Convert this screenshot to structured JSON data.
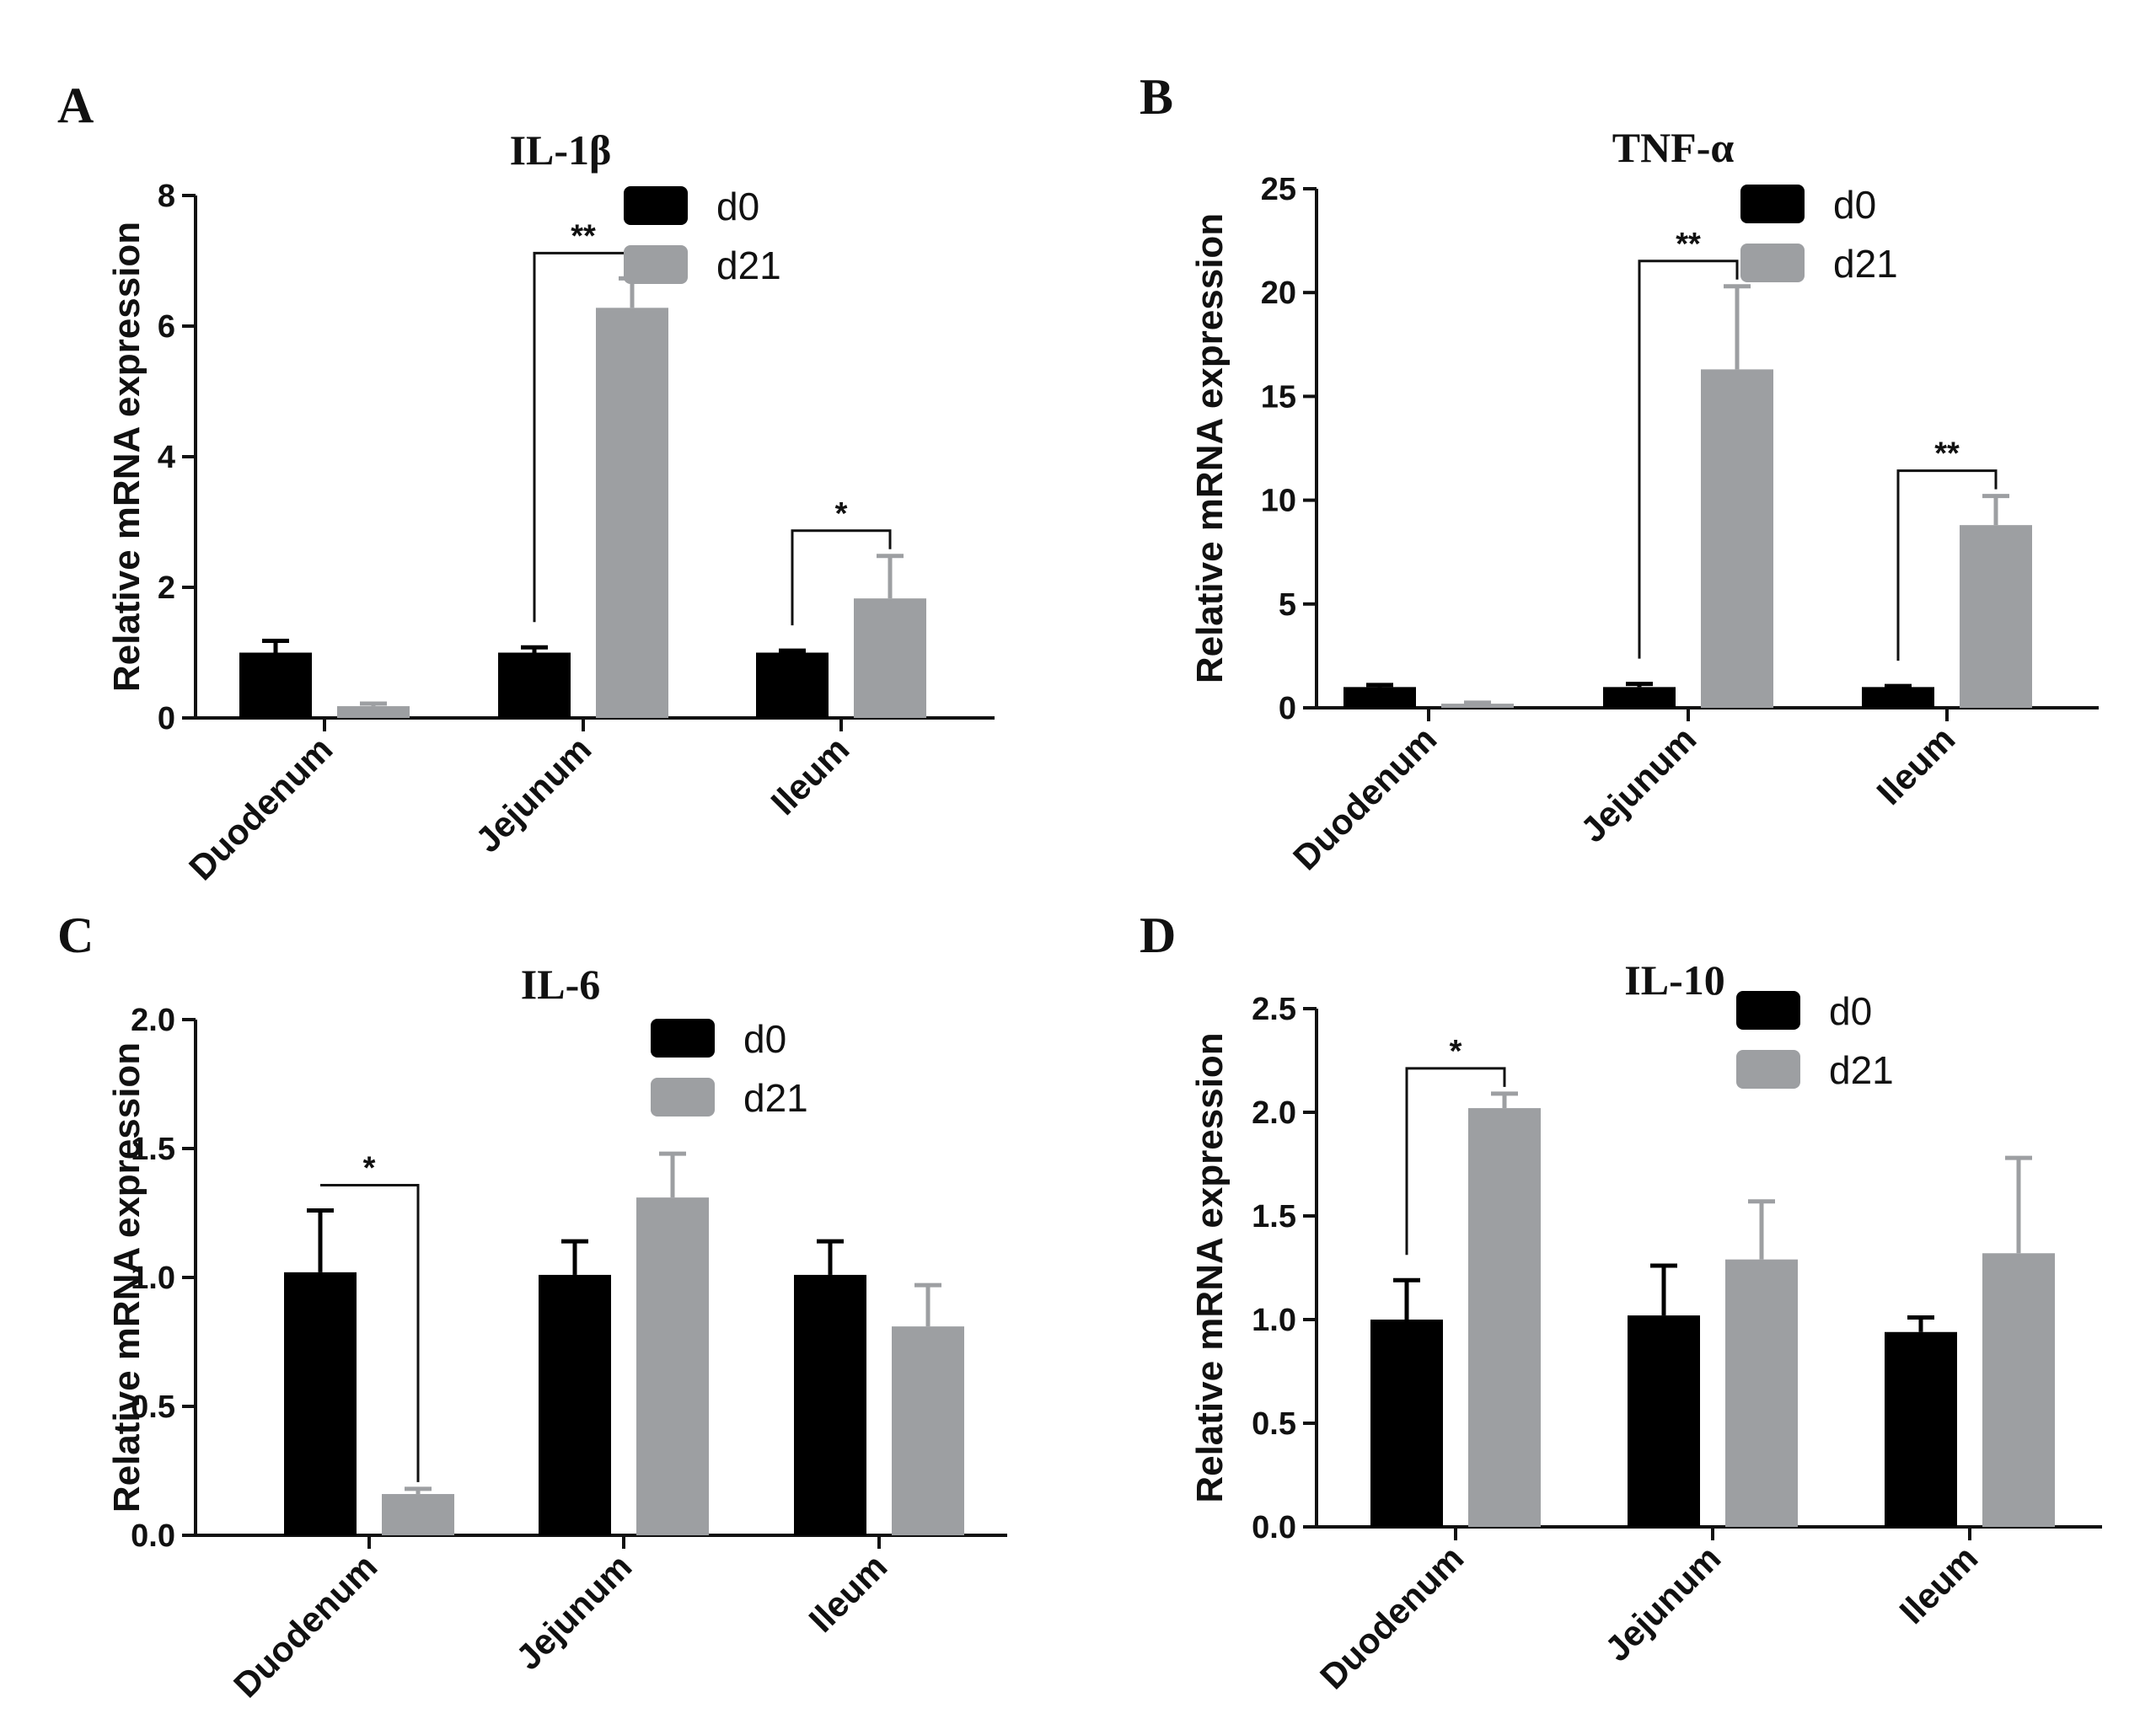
{
  "chart_data": [
    {
      "panel": "A",
      "type": "bar",
      "title": "IL-1β",
      "ylabel": "Relative mRNA expression",
      "xlabel": "",
      "ylim": [
        0,
        8
      ],
      "yticks": [
        0,
        2,
        4,
        6,
        8
      ],
      "ytick_labels": [
        "0",
        "2",
        "4",
        "6",
        "8"
      ],
      "categories": [
        "Duodenum",
        "Jejunum",
        "Ileum"
      ],
      "series": [
        {
          "name": "d0",
          "color": "#000000",
          "values": [
            1.0,
            1.0,
            1.0
          ],
          "errors": [
            0.18,
            0.08,
            0.03
          ]
        },
        {
          "name": "d21",
          "color": "#9d9fa2",
          "values": [
            0.18,
            6.28,
            1.83
          ],
          "errors": [
            0.04,
            0.45,
            0.65
          ]
        }
      ],
      "significance": [
        {
          "category_index": 1,
          "label": "**"
        },
        {
          "category_index": 2,
          "label": "*"
        }
      ],
      "legend_position": "top-right"
    },
    {
      "panel": "B",
      "type": "bar",
      "title": "TNF-α",
      "ylabel": "Relative mRNA expression",
      "xlabel": "",
      "ylim": [
        0,
        25
      ],
      "yticks": [
        0,
        5,
        10,
        15,
        20,
        25
      ],
      "ytick_labels": [
        "0",
        "5",
        "10",
        "15",
        "20",
        "25"
      ],
      "categories": [
        "Duodenum",
        "Jejunum",
        "Ileum"
      ],
      "series": [
        {
          "name": "d0",
          "color": "#000000",
          "values": [
            1.0,
            1.0,
            1.0
          ],
          "errors": [
            0.1,
            0.15,
            0.05
          ]
        },
        {
          "name": "d21",
          "color": "#9d9fa2",
          "values": [
            0.2,
            16.3,
            8.8
          ],
          "errors": [
            0.05,
            4.0,
            1.4
          ]
        }
      ],
      "significance": [
        {
          "category_index": 1,
          "label": "**"
        },
        {
          "category_index": 2,
          "label": "**"
        }
      ],
      "legend_position": "top-right"
    },
    {
      "panel": "C",
      "type": "bar",
      "title": "IL-6",
      "ylabel": "Relative mRNA expression",
      "xlabel": "",
      "ylim": [
        0,
        2.0
      ],
      "yticks": [
        0,
        0.5,
        1.0,
        1.5,
        2.0
      ],
      "ytick_labels": [
        "0.0",
        "0.5",
        "1.0",
        "1.5",
        "2.0"
      ],
      "categories": [
        "Duodenum",
        "Jejunum",
        "Ileum"
      ],
      "series": [
        {
          "name": "d0",
          "color": "#000000",
          "values": [
            1.02,
            1.01,
            1.01
          ],
          "errors": [
            0.24,
            0.13,
            0.13
          ]
        },
        {
          "name": "d21",
          "color": "#9d9fa2",
          "values": [
            0.16,
            1.31,
            0.81
          ],
          "errors": [
            0.02,
            0.17,
            0.16
          ]
        }
      ],
      "significance": [
        {
          "category_index": 0,
          "label": "*"
        }
      ],
      "legend_position": "top-right"
    },
    {
      "panel": "D",
      "type": "bar",
      "title": "IL-10",
      "ylabel": "Relative mRNA expression",
      "xlabel": "",
      "ylim": [
        0,
        2.5
      ],
      "yticks": [
        0,
        0.5,
        1.0,
        1.5,
        2.0,
        2.5
      ],
      "ytick_labels": [
        "0.0",
        "0.5",
        "1.0",
        "1.5",
        "2.0",
        "2.5"
      ],
      "categories": [
        "Duodenum",
        "Jejunum",
        "Ileum"
      ],
      "series": [
        {
          "name": "d0",
          "color": "#000000",
          "values": [
            1.0,
            1.02,
            0.94
          ],
          "errors": [
            0.19,
            0.24,
            0.07
          ]
        },
        {
          "name": "d21",
          "color": "#9d9fa2",
          "values": [
            2.02,
            1.29,
            1.32
          ],
          "errors": [
            0.07,
            0.28,
            0.46
          ]
        }
      ],
      "significance": [
        {
          "category_index": 0,
          "label": "*"
        }
      ],
      "legend_position": "top-right"
    }
  ]
}
